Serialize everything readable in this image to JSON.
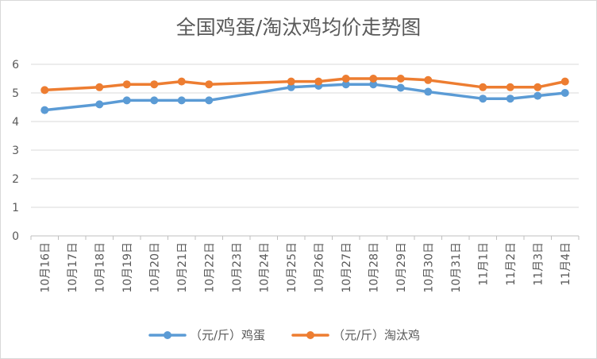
{
  "chart_data": {
    "type": "line",
    "title": "全国鸡蛋/淘汰鸡均价走势图",
    "xlabel": "",
    "ylabel": "",
    "ylim": [
      0,
      6
    ],
    "yticks": [
      0,
      1,
      2,
      3,
      4,
      5,
      6
    ],
    "grid": true,
    "legend_position": "bottom",
    "categories": [
      "10月16日",
      "10月17日",
      "10月18日",
      "10月19日",
      "10月20日",
      "10月21日",
      "10月22日",
      "10月23日",
      "10月24日",
      "10月25日",
      "10月26日",
      "10月27日",
      "10月28日",
      "10月29日",
      "10月30日",
      "10月31日",
      "11月1日",
      "11月2日",
      "11月3日",
      "11月4日"
    ],
    "series": [
      {
        "name": "（元/斤）鸡蛋",
        "color": "#5b9bd5",
        "values": [
          4.4,
          null,
          4.6,
          4.74,
          4.74,
          4.74,
          4.74,
          null,
          null,
          5.2,
          5.25,
          5.3,
          5.3,
          5.18,
          5.04,
          null,
          4.8,
          4.8,
          4.9,
          5.0
        ]
      },
      {
        "name": "（元/斤）淘汰鸡",
        "color": "#ed7d31",
        "values": [
          5.1,
          null,
          5.2,
          5.3,
          5.3,
          5.4,
          5.3,
          null,
          null,
          5.4,
          5.4,
          5.5,
          5.5,
          5.5,
          5.45,
          null,
          5.2,
          5.2,
          5.2,
          5.4
        ]
      }
    ]
  }
}
